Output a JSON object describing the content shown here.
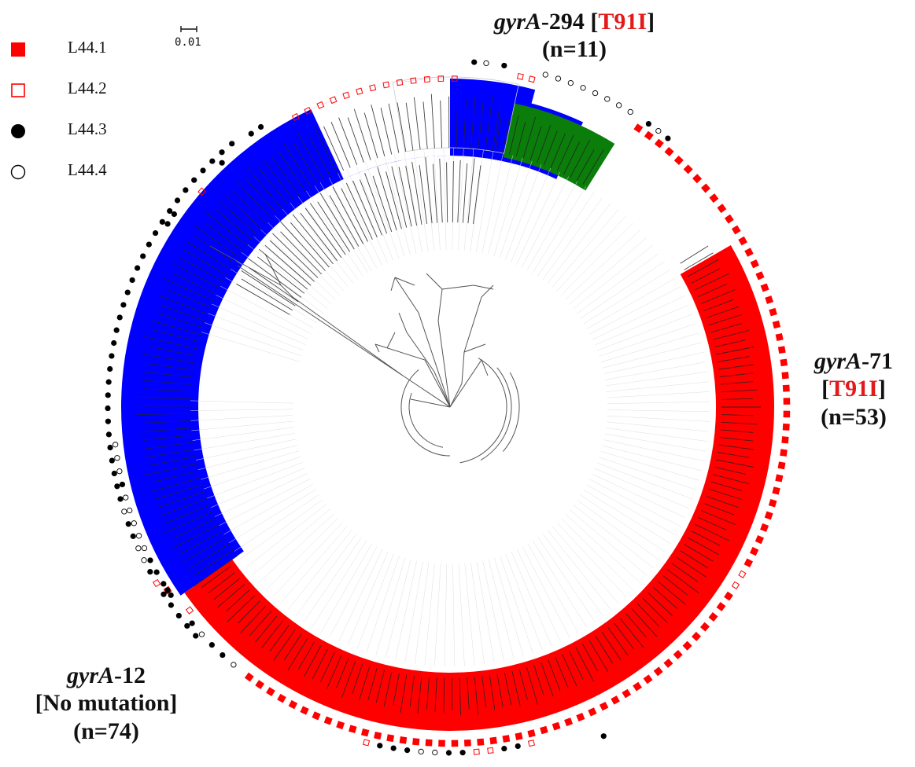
{
  "legend": [
    {
      "key": "L44.1",
      "label": "L44.1",
      "marker": "filled-square",
      "color": "#ff0000"
    },
    {
      "key": "L44.2",
      "label": "L44.2",
      "marker": "open-square",
      "color": "#ff0000"
    },
    {
      "key": "L44.3",
      "label": "L44.3",
      "marker": "filled-circle",
      "color": "#000000"
    },
    {
      "key": "L44.4",
      "label": "L44.4",
      "marker": "open-circle",
      "color": "#000000"
    }
  ],
  "scale_bar": {
    "label": "0.01"
  },
  "clades": [
    {
      "id": "green",
      "gene": "gyrA",
      "suffix": "-294",
      "mutation": "T91I",
      "count": "(n=11)",
      "color": "#0b7d0b"
    },
    {
      "id": "red",
      "gene": "gyrA",
      "suffix": "-71",
      "mutation": "T91I",
      "count": "(n=53)",
      "color": "#ff0000"
    },
    {
      "id": "blue",
      "gene": "gyrA",
      "suffix": "-12",
      "mutation": "No mutation",
      "count": "(n=74)",
      "color": "#0000ff"
    }
  ],
  "colors": {
    "mutation_text": "#e31a1c",
    "branch": "#555555",
    "tip_text": "#222222"
  }
}
